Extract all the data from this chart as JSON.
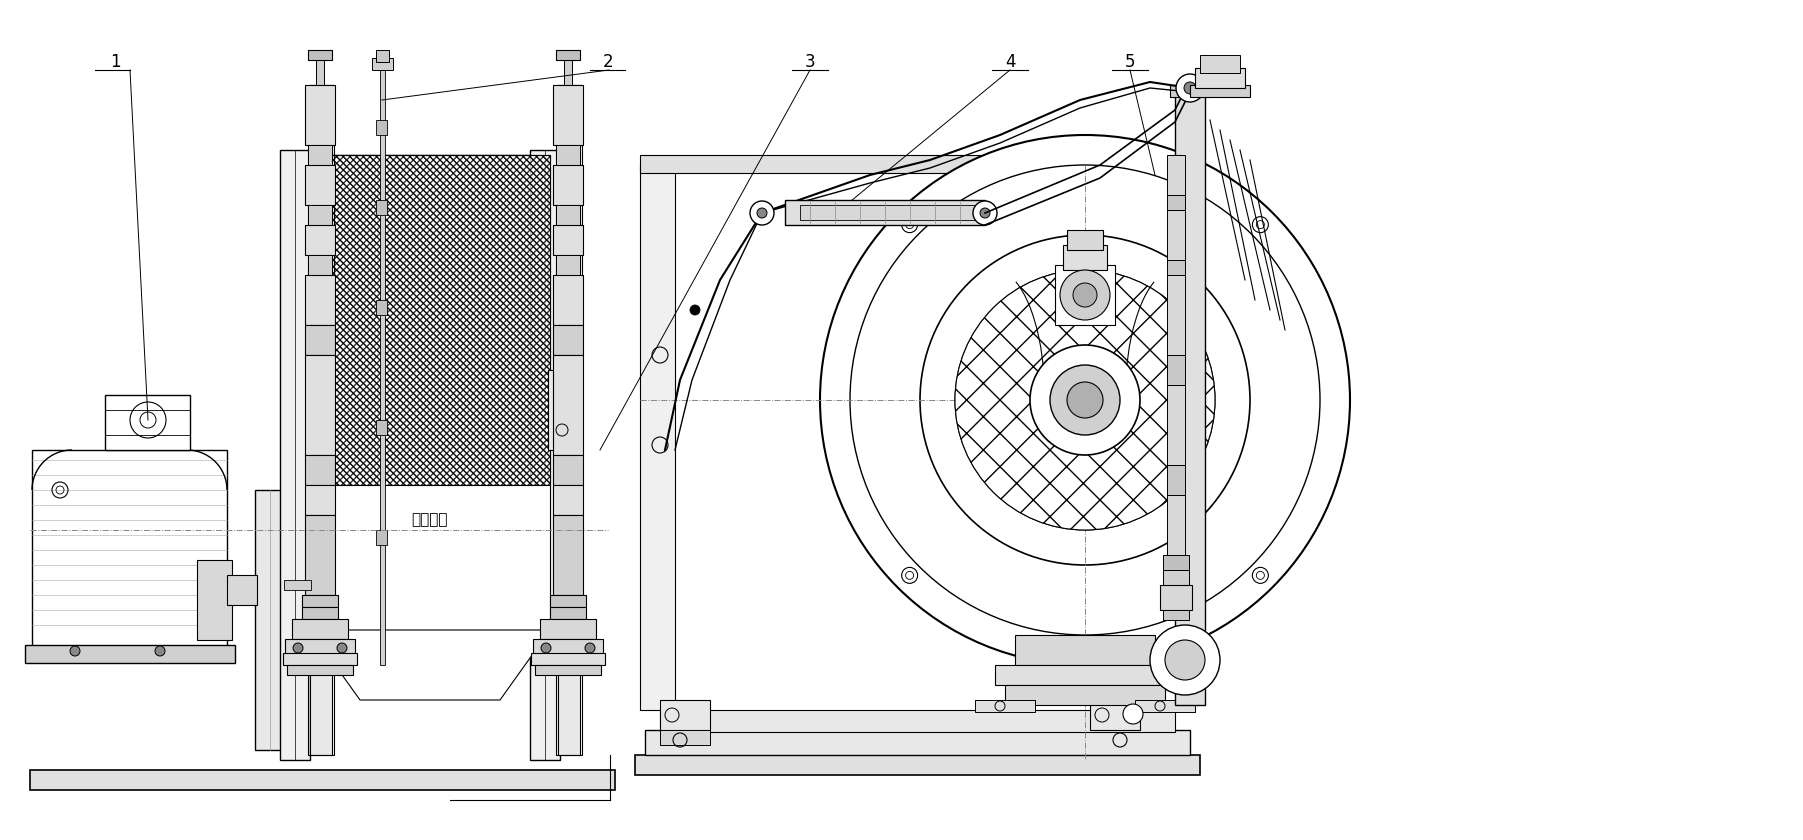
{
  "background_color": "#ffffff",
  "line_color": "#000000",
  "label_color": "#000000",
  "labels": [
    "1",
    "2",
    "3",
    "4",
    "5"
  ],
  "text_center": "平禁双剂",
  "figsize": [
    18.03,
    8.4
  ],
  "dpi": 100
}
